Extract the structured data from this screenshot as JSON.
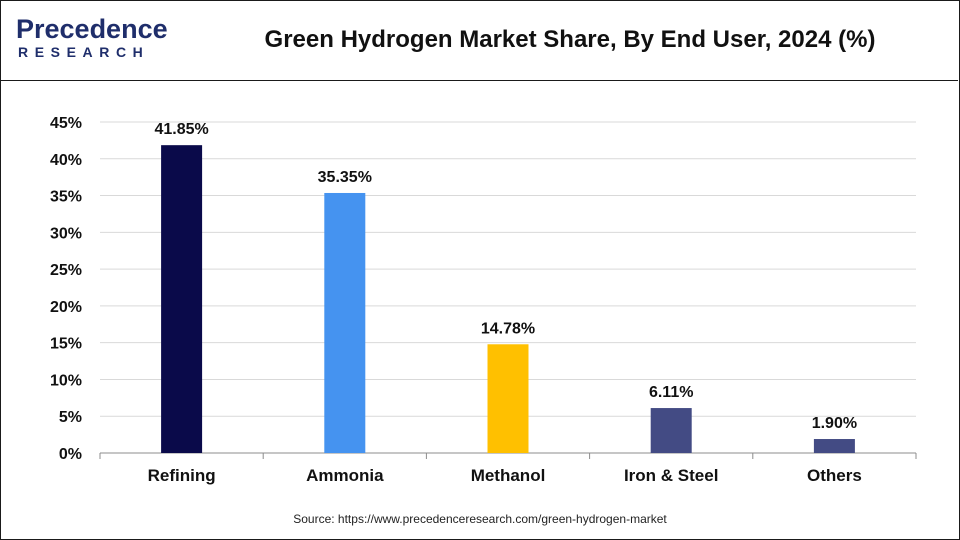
{
  "header": {
    "logo_top": "Precedence",
    "logo_bottom": "RESEARCH",
    "title": "Green Hydrogen Market Share, By End User, 2024 (%)"
  },
  "source": "Source: https://www.precedenceresearch.com/green-hydrogen-market",
  "colors": {
    "refining": "#0a0a4a",
    "ammonia": "#4593f0",
    "methanol": "#ffc000",
    "iron_steel": "#434b84",
    "others": "#434b84",
    "logo": "#1f2e6b"
  },
  "chart_data": {
    "type": "bar",
    "title": "Green Hydrogen Market Share, By End User, 2024 (%)",
    "categories": [
      "Refining",
      "Ammonia",
      "Methanol",
      "Iron & Steel",
      "Others"
    ],
    "values": [
      41.85,
      35.35,
      14.78,
      6.11,
      1.9
    ],
    "data_labels": [
      "41.85%",
      "35.35%",
      "14.78%",
      "6.11%",
      "1.90%"
    ],
    "bar_colors": [
      "#0a0a4a",
      "#4593f0",
      "#ffc000",
      "#434b84",
      "#434b84"
    ],
    "ylim": [
      0,
      45
    ],
    "yticks": [
      0,
      5,
      10,
      15,
      20,
      25,
      30,
      35,
      40,
      45
    ],
    "ytick_labels": [
      "0%",
      "5%",
      "10%",
      "15%",
      "20%",
      "25%",
      "30%",
      "35%",
      "40%",
      "45%"
    ],
    "xlabel": "",
    "ylabel": "",
    "grid": true,
    "legend": "none"
  }
}
